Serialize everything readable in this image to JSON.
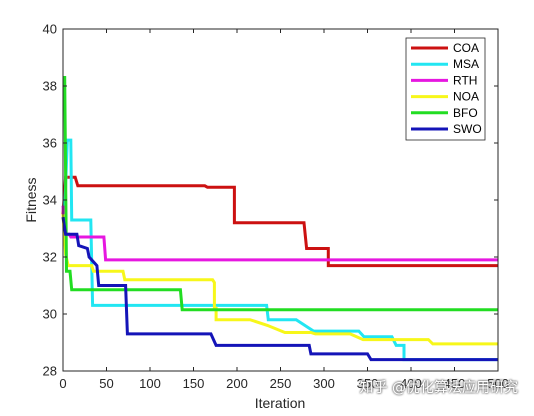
{
  "chart_data": {
    "type": "line",
    "xlabel": "Iteration",
    "ylabel": "Fitness",
    "xlim": [
      0,
      500
    ],
    "ylim": [
      28,
      40
    ],
    "xticks": [
      0,
      50,
      100,
      150,
      200,
      250,
      300,
      350,
      400,
      450,
      500
    ],
    "yticks": [
      28,
      30,
      32,
      34,
      36,
      38,
      40
    ],
    "grid": false,
    "legend_position": "top-right",
    "series": [
      {
        "name": "COA",
        "color": "#cc1111",
        "points": [
          [
            0,
            33.5
          ],
          [
            3,
            34.8
          ],
          [
            14,
            34.8
          ],
          [
            17,
            34.5
          ],
          [
            163,
            34.5
          ],
          [
            166,
            34.45
          ],
          [
            197,
            34.45
          ],
          [
            197,
            33.2
          ],
          [
            277,
            33.2
          ],
          [
            280,
            32.3
          ],
          [
            305,
            32.3
          ],
          [
            305,
            31.7
          ],
          [
            500,
            31.7
          ]
        ]
      },
      {
        "name": "MSA",
        "color": "#22e6f2",
        "points": [
          [
            0,
            33.8
          ],
          [
            2,
            33.6
          ],
          [
            5,
            36.1
          ],
          [
            9,
            36.1
          ],
          [
            10,
            33.3
          ],
          [
            32,
            33.3
          ],
          [
            34,
            30.3
          ],
          [
            234,
            30.3
          ],
          [
            236,
            29.8
          ],
          [
            268,
            29.8
          ],
          [
            288,
            29.4
          ],
          [
            340,
            29.4
          ],
          [
            346,
            29.2
          ],
          [
            378,
            29.2
          ],
          [
            383,
            28.9
          ],
          [
            392,
            28.9
          ],
          [
            392,
            28.4
          ],
          [
            500,
            28.4
          ]
        ]
      },
      {
        "name": "RTH",
        "color": "#e617e0",
        "points": [
          [
            0,
            33.8
          ],
          [
            2,
            32.8
          ],
          [
            7,
            32.8
          ],
          [
            9,
            32.7
          ],
          [
            47,
            32.7
          ],
          [
            49,
            31.9
          ],
          [
            500,
            31.9
          ]
        ]
      },
      {
        "name": "NOA",
        "color": "#f7f71a",
        "points": [
          [
            0,
            33.5
          ],
          [
            3,
            32.1
          ],
          [
            6,
            31.7
          ],
          [
            33,
            31.7
          ],
          [
            35,
            31.5
          ],
          [
            69,
            31.5
          ],
          [
            71,
            31.2
          ],
          [
            172,
            31.2
          ],
          [
            174,
            31.1
          ],
          [
            174,
            30.2
          ],
          [
            176,
            30.2
          ],
          [
            176,
            29.8
          ],
          [
            215,
            29.8
          ],
          [
            235,
            29.6
          ],
          [
            255,
            29.35
          ],
          [
            285,
            29.35
          ],
          [
            290,
            29.3
          ],
          [
            330,
            29.3
          ],
          [
            345,
            29.1
          ],
          [
            380,
            29.1
          ],
          [
            400,
            29.1
          ],
          [
            420,
            29.1
          ],
          [
            425,
            28.95
          ],
          [
            500,
            28.95
          ]
        ]
      },
      {
        "name": "BFO",
        "color": "#22dd22",
        "points": [
          [
            0,
            38.3
          ],
          [
            2,
            38.3
          ],
          [
            4,
            31.5
          ],
          [
            8,
            31.5
          ],
          [
            10,
            30.85
          ],
          [
            135,
            30.85
          ],
          [
            137,
            30.15
          ],
          [
            500,
            30.15
          ]
        ]
      },
      {
        "name": "SWO",
        "color": "#1414b8",
        "points": [
          [
            0,
            33.4
          ],
          [
            3,
            32.8
          ],
          [
            16,
            32.8
          ],
          [
            18,
            32.4
          ],
          [
            28,
            32.3
          ],
          [
            30,
            32.0
          ],
          [
            39,
            31.7
          ],
          [
            41,
            31.0
          ],
          [
            72,
            31.0
          ],
          [
            74,
            29.3
          ],
          [
            170,
            29.3
          ],
          [
            176,
            28.9
          ],
          [
            283,
            28.9
          ],
          [
            285,
            28.6
          ],
          [
            350,
            28.6
          ],
          [
            354,
            28.4
          ],
          [
            500,
            28.4
          ]
        ]
      }
    ]
  },
  "watermark": "知乎 @优化算法应用研究"
}
